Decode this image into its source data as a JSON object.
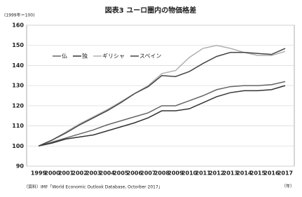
{
  "chart_data": {
    "type": "line",
    "title": "図表3 ユーロ圏内の物価格差",
    "ylabel": "(1999年＝100)",
    "xlabel": "（年）",
    "source": "（資料）IMF「World Economic Outlook Database, Octorber 2017」",
    "categories": [
      "1999",
      "2000",
      "2001",
      "2002",
      "2003",
      "2004",
      "2005",
      "2006",
      "2007",
      "2008",
      "2009",
      "2010",
      "2011",
      "2012",
      "2013",
      "2014",
      "2015",
      "2016",
      "2017"
    ],
    "series": [
      {
        "name": "仏",
        "color": "#666666",
        "values": [
          100,
          102,
          104,
          106,
          108,
          110.5,
          112.5,
          114.5,
          116.5,
          120,
          120,
          122.5,
          125,
          128,
          129.5,
          130,
          130,
          130.5,
          132
        ]
      },
      {
        "name": "独",
        "color": "#333333",
        "values": [
          100,
          101.5,
          103.5,
          104.5,
          105.5,
          107.5,
          109.5,
          111.5,
          114,
          117.5,
          117.5,
          118.5,
          121.5,
          124.5,
          126.5,
          127.5,
          127.5,
          128,
          130
        ]
      },
      {
        "name": "ギリシャ",
        "color": "#b0b0b0",
        "values": [
          100,
          103,
          107,
          111,
          114.5,
          118,
          122,
          126,
          130,
          136,
          137.5,
          144,
          148.5,
          150,
          148.5,
          146.5,
          145,
          145,
          147
        ]
      },
      {
        "name": "スペイン",
        "color": "#444444",
        "values": [
          100,
          103,
          106.5,
          110.5,
          114,
          117.5,
          121.5,
          126,
          129.5,
          135,
          134.5,
          137,
          141,
          144.5,
          146.5,
          146.5,
          146,
          145.5,
          148.5
        ]
      }
    ],
    "ylim": [
      90,
      160
    ],
    "yticks": [
      90,
      100,
      110,
      120,
      130,
      140,
      150,
      160
    ],
    "grid": true,
    "legend": "upper left"
  }
}
